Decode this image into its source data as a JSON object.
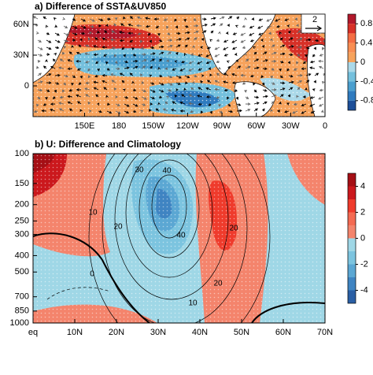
{
  "chart_data": [
    {
      "type": "map",
      "title": "a) Difference of SSTA&UV850",
      "xlim": [
        105,
        360
      ],
      "ylim": [
        -30,
        70
      ],
      "xticks": [
        {
          "value": 150,
          "label": "150E"
        },
        180,
        {
          "value": 210,
          "label": "150W"
        },
        {
          "value": 240,
          "label": "120W"
        },
        {
          "value": 270,
          "label": "90W"
        },
        {
          "value": 300,
          "label": "60W"
        },
        {
          "value": 330,
          "label": "30W"
        },
        {
          "value": 360,
          "label": "0"
        }
      ],
      "yticks": [
        {
          "value": 60,
          "label": "60N"
        },
        {
          "value": 30,
          "label": "30N"
        },
        0
      ],
      "colorbar": {
        "lim": [
          -1,
          1
        ],
        "ticks": [
          0.8,
          0.4,
          0,
          -0.4,
          -0.8
        ],
        "colors": [
          "#b2182b",
          "#d73027",
          "#f46d43",
          "#f98e52",
          "#f7a35c",
          "#abd9e9",
          "#74c0dd",
          "#4a9fcf",
          "#2f7bbf",
          "#1d4f99"
        ]
      },
      "vector_reference": 2
    },
    {
      "type": "contour",
      "title": "b) U: Difference and Climatology",
      "xlim": [
        0,
        70
      ],
      "ylim": [
        1000,
        100
      ],
      "log_scale": true,
      "xticks": [
        {
          "value": 0,
          "label": "eq"
        },
        {
          "value": 10,
          "label": "10N"
        },
        {
          "value": 20,
          "label": "20N"
        },
        {
          "value": 30,
          "label": "30N"
        },
        {
          "value": 40,
          "label": "40N"
        },
        {
          "value": 50,
          "label": "50N"
        },
        {
          "value": 60,
          "label": "60N"
        },
        {
          "value": 70,
          "label": "70N"
        }
      ],
      "yticks": [
        100,
        150,
        200,
        250,
        300,
        400,
        500,
        700,
        850,
        1000
      ],
      "colorbar": {
        "lim": [
          -5,
          5
        ],
        "ticks": [
          4,
          2,
          0,
          -2,
          -4
        ],
        "colors": [
          "#a50f15",
          "#cb181d",
          "#ef3b2c",
          "#f46a52",
          "#f4846c",
          "#9fd7e6",
          "#7cc4df",
          "#5ba7d3",
          "#3f84c2",
          "#2a5fa5"
        ]
      },
      "contour_labels": [
        30,
        40,
        10,
        20,
        20,
        40,
        0,
        20,
        10
      ]
    }
  ]
}
